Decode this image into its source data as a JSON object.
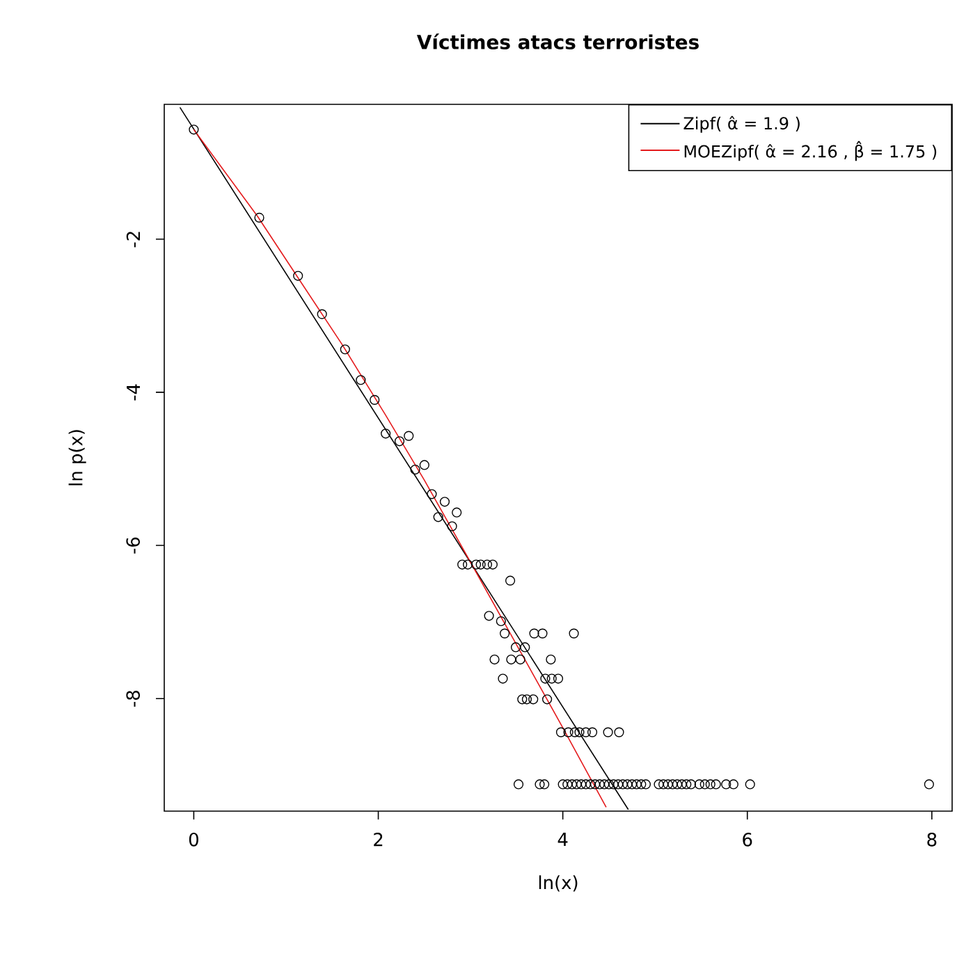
{
  "chart_data": {
    "type": "scatter",
    "title": "Víctimes atacs terroristes",
    "xlabel": "ln(x)",
    "ylabel": "ln p(x)",
    "xlim": [
      -0.32,
      8.22
    ],
    "ylim": [
      -9.47,
      -0.24
    ],
    "xticks": [
      0,
      2,
      4,
      6,
      8
    ],
    "yticks": [
      -2,
      -4,
      -6,
      -8
    ],
    "legend": "top right",
    "series": [
      {
        "marker": "circle",
        "color": "#000000",
        "x": [
          0,
          0.71,
          1.13,
          1.39,
          1.64,
          1.81,
          1.96,
          2.08,
          2.23,
          2.33,
          2.4,
          2.5,
          2.58,
          2.72,
          2.65,
          2.85,
          2.8,
          2.91,
          2.97,
          3.06,
          3.11,
          3.18,
          3.24,
          3.43,
          3.2,
          3.33,
          3.37,
          3.69,
          3.78,
          4.12,
          3.49,
          3.59,
          3.26,
          3.44,
          3.54,
          3.87,
          3.35,
          3.81,
          3.88,
          3.95,
          3.56,
          3.61,
          3.68,
          3.83,
          3.98,
          4.06,
          4.13,
          4.18,
          4.25,
          4.32,
          4.49,
          4.61,
          3.52,
          3.75,
          3.8,
          4.0,
          4.05,
          4.1,
          4.15,
          4.2,
          4.25,
          4.3,
          4.35,
          4.4,
          4.45,
          4.5,
          4.55,
          4.6,
          4.65,
          4.7,
          4.75,
          4.8,
          4.85,
          4.9,
          5.04,
          5.09,
          5.14,
          5.19,
          5.24,
          5.29,
          5.34,
          5.39,
          5.48,
          5.54,
          5.6,
          5.66,
          5.77,
          5.85,
          6.03,
          7.97
        ],
        "values": [
          -0.57,
          -1.72,
          -2.48,
          -2.98,
          -3.44,
          -3.84,
          -4.1,
          -4.54,
          -4.64,
          -4.57,
          -5.01,
          -4.95,
          -5.33,
          -5.43,
          -5.63,
          -5.57,
          -5.75,
          -6.25,
          -6.25,
          -6.25,
          -6.25,
          -6.25,
          -6.25,
          -6.46,
          -6.92,
          -6.99,
          -7.15,
          -7.15,
          -7.15,
          -7.15,
          -7.33,
          -7.33,
          -7.49,
          -7.49,
          -7.49,
          -7.49,
          -7.74,
          -7.74,
          -7.74,
          -7.74,
          -8.01,
          -8.01,
          -8.01,
          -8.01,
          -8.44,
          -8.44,
          -8.44,
          -8.44,
          -8.44,
          -8.44,
          -8.44,
          -8.44,
          -9.12,
          -9.12,
          -9.12,
          -9.12,
          -9.12,
          -9.12,
          -9.12,
          -9.12,
          -9.12,
          -9.12,
          -9.12,
          -9.12,
          -9.12,
          -9.12,
          -9.12,
          -9.12,
          -9.12,
          -9.12,
          -9.12,
          -9.12,
          -9.12,
          -9.12,
          -9.12,
          -9.12,
          -9.12,
          -9.12,
          -9.12,
          -9.12,
          -9.12,
          -9.12,
          -9.12,
          -9.12,
          -9.12,
          -9.12,
          -9.12,
          -9.12,
          -9.12,
          -9.12
        ]
      },
      {
        "type": "line",
        "marker": "none",
        "name": "Zipf( α̂ = 1.9 )",
        "color": "#000000",
        "x": [
          -0.15,
          4.71
        ],
        "values": [
          -0.28,
          -9.45
        ]
      },
      {
        "type": "line",
        "marker": "none",
        "name": "MOEZipf( α̂ = 2.16 ,  β̂ = 1.75 )",
        "color": "#e41a1c",
        "x": [
          0,
          0.69,
          1.1,
          1.61,
          2.08,
          2.5,
          3.0,
          3.5,
          4.0,
          4.47
        ],
        "values": [
          -0.57,
          -1.7,
          -2.45,
          -3.38,
          -4.3,
          -5.15,
          -6.22,
          -7.3,
          -8.38,
          -9.42
        ]
      }
    ]
  }
}
